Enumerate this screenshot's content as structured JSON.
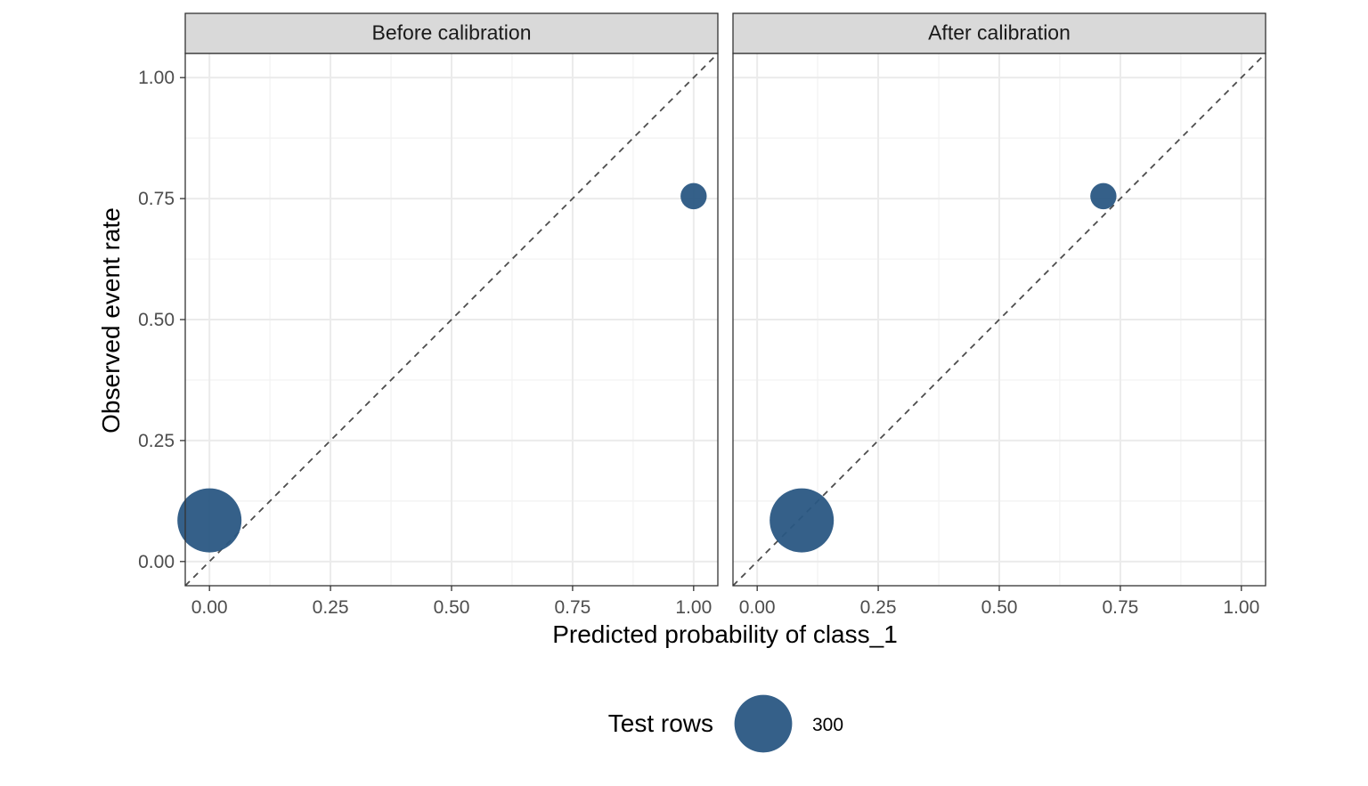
{
  "chart_data": {
    "type": "scatter",
    "facets": [
      {
        "title": "Before calibration",
        "points": [
          {
            "x": 0.0,
            "y": 0.085,
            "size": 300
          },
          {
            "x": 1.0,
            "y": 0.755,
            "size": 50
          }
        ]
      },
      {
        "title": "After calibration",
        "points": [
          {
            "x": 0.092,
            "y": 0.085,
            "size": 300
          },
          {
            "x": 0.715,
            "y": 0.755,
            "size": 50
          }
        ]
      }
    ],
    "xlabel": "Predicted probability of class_1",
    "ylabel": "Observed event rate",
    "xlim": [
      -0.05,
      1.05
    ],
    "ylim": [
      -0.05,
      1.05
    ],
    "x_ticks": [
      0.0,
      0.25,
      0.5,
      0.75,
      1.0
    ],
    "x_tick_labels": [
      "0.00",
      "0.25",
      "0.50",
      "0.75",
      "1.00"
    ],
    "y_ticks": [
      0.0,
      0.25,
      0.5,
      0.75,
      1.0
    ],
    "y_tick_labels": [
      "0.00",
      "0.25",
      "0.50",
      "0.75",
      "1.00"
    ],
    "reference_line": {
      "slope": 1,
      "intercept": 0,
      "style": "dashed",
      "color": "#4d4d4d"
    },
    "point_color": "#2a5783",
    "grid": true,
    "legend": {
      "title": "Test rows",
      "entries": [
        {
          "label": "300",
          "size": 300
        }
      ],
      "placement": "bottom"
    }
  }
}
